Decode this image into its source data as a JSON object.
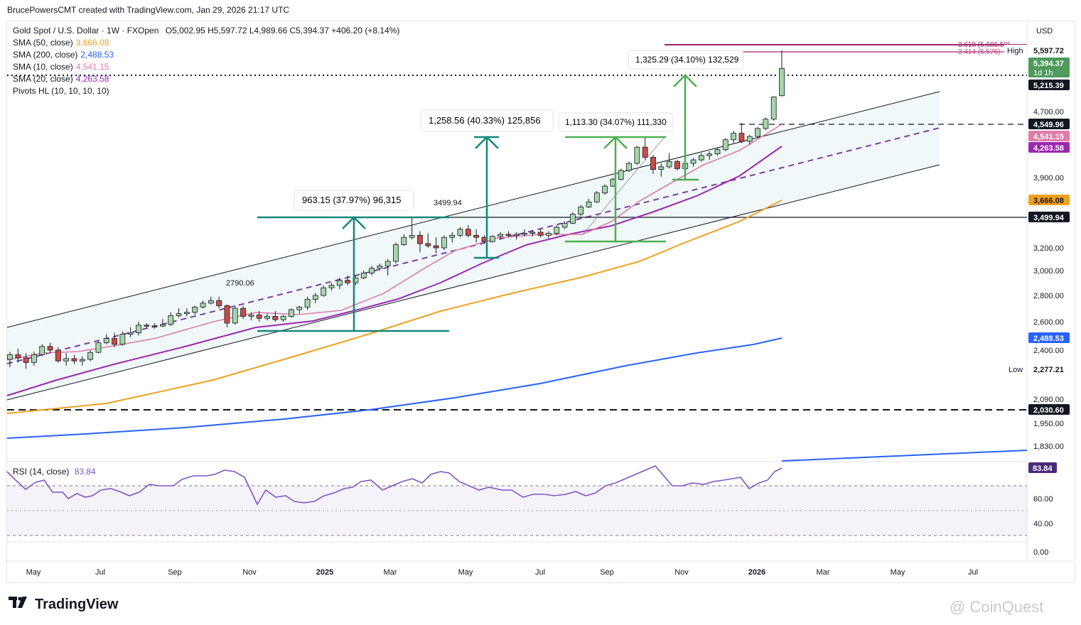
{
  "credit": "BrucePowersCMT created with TradingView.com, Jan 29, 2026 21:17 UTC",
  "legend": {
    "symbol": "Gold Spot / U.S. Dollar · 1W · FXOpen",
    "ohlc": "O5,002.95  H5,597.72  L4,989.66  C5,394.37  +406.20 (+8.14%)",
    "rows": [
      {
        "label": "SMA (50, close)",
        "value": "3,666.08",
        "color": "#f0a020"
      },
      {
        "label": "SMA (200, close)",
        "value": "2,488.53",
        "color": "#2962ff"
      },
      {
        "label": "SMA (10, close)",
        "value": "4,541.15",
        "color": "#e07ba6"
      },
      {
        "label": "SMA (20, close)",
        "value": "4,263.58",
        "color": "#9c27b0"
      },
      {
        "label": "Pivots HL (10, 10, 10, 10)",
        "value": "",
        "color": "#131722"
      }
    ]
  },
  "currency": "USD",
  "rsi_label": "RSI (14, close)",
  "rsi_value": "83.84",
  "branding": "TradingView",
  "watermark": "@ CoinQuest",
  "chart_data": {
    "type": "candlestick",
    "title": "Gold Spot / U.S. Dollar · 1W · FXOpen",
    "y_axis_ticks": [
      "4,700.00",
      "3,900.00",
      "3,200.00",
      "3,000.00",
      "2,800.00",
      "2,600.00",
      "2,400.00",
      "2,090.00",
      "1,950.00",
      "1,830.00"
    ],
    "x_axis_ticks": [
      "May",
      "Jul",
      "Sep",
      "Nov",
      "2025",
      "Mar",
      "May",
      "Jul",
      "Sep",
      "Nov",
      "2026",
      "Mar",
      "May",
      "Jul"
    ],
    "price_badges": [
      {
        "value": "5,597.72",
        "style": "plain"
      },
      {
        "value": "5,394.37",
        "sub": "1d 1h",
        "style": "green"
      },
      {
        "value": "5,215.39",
        "style": "dark"
      },
      {
        "value": "4,549.96",
        "style": "dark"
      },
      {
        "value": "4,541.15",
        "style": "pink"
      },
      {
        "value": "4,263.58",
        "style": "purple"
      },
      {
        "value": "3,666.08",
        "style": "orange"
      },
      {
        "value": "3,499.94",
        "style": "dark"
      },
      {
        "value": "2,488.53",
        "style": "blue"
      },
      {
        "value": "2,277.21",
        "style": "plain"
      },
      {
        "value": "2,030.60",
        "style": "dark"
      }
    ],
    "high_label": "High",
    "low_label": "Low",
    "fib_labels": [
      "3.618 (5,686.58)",
      "3.414 (5,575)"
    ],
    "pivot_labels": [
      "2790.06",
      "3499.94"
    ],
    "measurements": [
      "963.15 (37.97%) 96,315",
      "1,258.56 (40.33%) 125,856",
      "1,113.30 (34.07%) 111,330",
      "1,325.29 (34.10%) 132,529"
    ],
    "rsi_ticks": [
      "60.00",
      "40.00",
      "0.00"
    ],
    "rsi_current": 83.84,
    "candles": [
      [
        2340,
        2390,
        2290,
        2370
      ],
      [
        2370,
        2410,
        2320,
        2350
      ],
      [
        2350,
        2380,
        2280,
        2320
      ],
      [
        2320,
        2390,
        2300,
        2370
      ],
      [
        2370,
        2440,
        2360,
        2425
      ],
      [
        2425,
        2450,
        2380,
        2400
      ],
      [
        2400,
        2420,
        2320,
        2330
      ],
      [
        2330,
        2380,
        2300,
        2345
      ],
      [
        2345,
        2370,
        2310,
        2330
      ],
      [
        2330,
        2360,
        2300,
        2340
      ],
      [
        2340,
        2400,
        2330,
        2385
      ],
      [
        2385,
        2460,
        2380,
        2450
      ],
      [
        2450,
        2510,
        2440,
        2480
      ],
      [
        2480,
        2520,
        2420,
        2440
      ],
      [
        2440,
        2530,
        2430,
        2510
      ],
      [
        2510,
        2560,
        2490,
        2520
      ],
      [
        2520,
        2600,
        2500,
        2575
      ],
      [
        2575,
        2590,
        2550,
        2570
      ],
      [
        2570,
        2590,
        2550,
        2568
      ],
      [
        2568,
        2620,
        2560,
        2580
      ],
      [
        2580,
        2670,
        2570,
        2645
      ],
      [
        2645,
        2700,
        2630,
        2660
      ],
      [
        2660,
        2700,
        2640,
        2670
      ],
      [
        2670,
        2720,
        2650,
        2710
      ],
      [
        2710,
        2760,
        2700,
        2740
      ],
      [
        2740,
        2790,
        2730,
        2760
      ],
      [
        2760,
        2790,
        2700,
        2720
      ],
      [
        2720,
        2730,
        2560,
        2590
      ],
      [
        2590,
        2720,
        2580,
        2700
      ],
      [
        2700,
        2720,
        2620,
        2640
      ],
      [
        2640,
        2670,
        2610,
        2650
      ],
      [
        2650,
        2680,
        2600,
        2625
      ],
      [
        2625,
        2660,
        2610,
        2640
      ],
      [
        2640,
        2680,
        2600,
        2615
      ],
      [
        2615,
        2650,
        2600,
        2640
      ],
      [
        2640,
        2700,
        2630,
        2690
      ],
      [
        2690,
        2720,
        2660,
        2710
      ],
      [
        2710,
        2790,
        2690,
        2770
      ],
      [
        2770,
        2820,
        2740,
        2800
      ],
      [
        2800,
        2880,
        2790,
        2860
      ],
      [
        2860,
        2900,
        2840,
        2880
      ],
      [
        2880,
        2940,
        2850,
        2920
      ],
      [
        2920,
        2960,
        2880,
        2900
      ],
      [
        2900,
        2960,
        2880,
        2940
      ],
      [
        2940,
        3000,
        2930,
        2980
      ],
      [
        2980,
        3040,
        2960,
        3020
      ],
      [
        3020,
        3060,
        3000,
        3040
      ],
      [
        3040,
        3100,
        2960,
        3080
      ],
      [
        3080,
        3250,
        3060,
        3230
      ],
      [
        3230,
        3330,
        3220,
        3300
      ],
      [
        3300,
        3500,
        3280,
        3320
      ],
      [
        3320,
        3360,
        3160,
        3240
      ],
      [
        3240,
        3340,
        3200,
        3220
      ],
      [
        3220,
        3300,
        3150,
        3200
      ],
      [
        3200,
        3320,
        3180,
        3300
      ],
      [
        3300,
        3350,
        3250,
        3320
      ],
      [
        3320,
        3400,
        3300,
        3380
      ],
      [
        3380,
        3420,
        3300,
        3320
      ],
      [
        3320,
        3380,
        3250,
        3300
      ],
      [
        3300,
        3320,
        3240,
        3260
      ],
      [
        3260,
        3320,
        3250,
        3310
      ],
      [
        3310,
        3350,
        3290,
        3330
      ],
      [
        3330,
        3360,
        3300,
        3320
      ],
      [
        3320,
        3350,
        3280,
        3330
      ],
      [
        3330,
        3380,
        3310,
        3340
      ],
      [
        3340,
        3370,
        3310,
        3350
      ],
      [
        3350,
        3380,
        3300,
        3320
      ],
      [
        3320,
        3360,
        3290,
        3340
      ],
      [
        3340,
        3420,
        3320,
        3400
      ],
      [
        3400,
        3460,
        3380,
        3440
      ],
      [
        3440,
        3550,
        3430,
        3530
      ],
      [
        3530,
        3620,
        3510,
        3600
      ],
      [
        3600,
        3680,
        3590,
        3650
      ],
      [
        3650,
        3760,
        3640,
        3740
      ],
      [
        3740,
        3830,
        3720,
        3810
      ],
      [
        3810,
        3900,
        3800,
        3880
      ],
      [
        3880,
        4000,
        3870,
        3980
      ],
      [
        3980,
        4080,
        3960,
        4060
      ],
      [
        4060,
        4260,
        4040,
        4250
      ],
      [
        4250,
        4380,
        4100,
        4130
      ],
      [
        4130,
        4160,
        3940,
        3990
      ],
      [
        3990,
        4060,
        3910,
        4020
      ],
      [
        4020,
        4180,
        4000,
        4080
      ],
      [
        4080,
        4100,
        3980,
        4000
      ],
      [
        4000,
        4080,
        3980,
        4060
      ],
      [
        4060,
        4120,
        4020,
        4100
      ],
      [
        4100,
        4180,
        4080,
        4150
      ],
      [
        4150,
        4200,
        4100,
        4170
      ],
      [
        4170,
        4240,
        4150,
        4220
      ],
      [
        4220,
        4360,
        4200,
        4340
      ],
      [
        4340,
        4450,
        4300,
        4420
      ],
      [
        4420,
        4550,
        4300,
        4320
      ],
      [
        4320,
        4400,
        4280,
        4380
      ],
      [
        4380,
        4500,
        4360,
        4480
      ],
      [
        4480,
        4620,
        4460,
        4600
      ],
      [
        4600,
        4990,
        4580,
        4980
      ],
      [
        5002.95,
        5597.72,
        4989.66,
        5394.37
      ]
    ],
    "series": [
      {
        "name": "SMA (200, close)",
        "values": [
          1860,
          1870,
          1880,
          1890,
          1900,
          1910,
          1920,
          1930,
          1940,
          1950,
          1960,
          1970,
          1980,
          1990,
          2000,
          2010,
          2020,
          2030,
          2040,
          2050,
          2060,
          2070,
          2080,
          2090,
          2100,
          2110,
          2120,
          2130,
          2140,
          2150,
          2160,
          2170,
          2180,
          2190,
          2200,
          2210,
          2220,
          2230,
          2240,
          2250,
          2260,
          2270,
          2280,
          2290,
          2300,
          2310,
          2320,
          2330,
          2340,
          2350,
          2360,
          2370,
          2380,
          2390,
          2400,
          2410,
          2420,
          2430,
          2440,
          2450,
          2460,
          2470,
          2488.53
        ]
      }
    ]
  }
}
